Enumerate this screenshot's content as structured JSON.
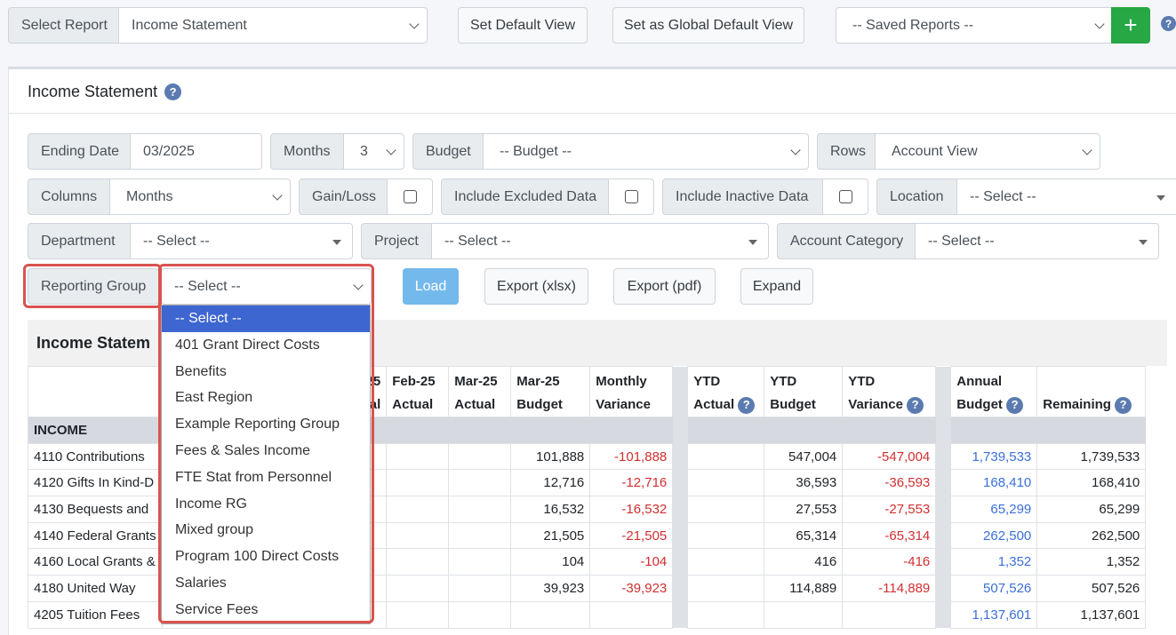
{
  "topbar": {
    "select_report_label": "Select Report",
    "report_value": "Income Statement",
    "set_default_label": "Set Default View",
    "set_global_label": "Set as Global Default View",
    "saved_reports_value": "-- Saved Reports --",
    "add_label": "+",
    "help": "?"
  },
  "card": {
    "title": "Income Statement",
    "help": "?"
  },
  "filters": {
    "ending_date_label": "Ending Date",
    "ending_date_value": "03/2025",
    "months_label": "Months",
    "months_value": "3",
    "budget_label": "Budget",
    "budget_value": "-- Budget --",
    "rows_label": "Rows",
    "rows_value": "Account View",
    "columns_label": "Columns",
    "columns_value": "Months",
    "gainloss_label": "Gain/Loss",
    "excluded_label": "Include Excluded Data",
    "inactive_label": "Include Inactive Data",
    "location_label": "Location",
    "location_value": "-- Select --",
    "department_label": "Department",
    "department_value": "-- Select --",
    "project_label": "Project",
    "project_value": "-- Select --",
    "account_category_label": "Account Category",
    "account_category_value": "-- Select --",
    "reporting_group_label": "Reporting Group",
    "reporting_group_value": "-- Select --"
  },
  "actions": {
    "load": "Load",
    "export_xlsx": "Export (xlsx)",
    "export_pdf": "Export (pdf)",
    "expand": "Expand"
  },
  "dropdown": {
    "options": [
      "-- Select --",
      "401 Grant Direct Costs",
      "Benefits",
      "East Region",
      "Example Reporting Group",
      "Fees & Sales Income",
      "FTE Stat from Personnel",
      "Income RG",
      "Mixed group",
      "Program 100 Direct Costs",
      "Salaries",
      "Service Fees"
    ]
  },
  "table": {
    "section_title": "Income Statem",
    "headers": {
      "jan": [
        "-25",
        "ual"
      ],
      "feb": [
        "Feb-25",
        "Actual"
      ],
      "mar_actual": [
        "Mar-25",
        "Actual"
      ],
      "mar_budget": [
        "Mar-25",
        "Budget"
      ],
      "monthly_var": [
        "Monthly",
        "Variance"
      ],
      "ytd_actual": [
        "YTD",
        "Actual"
      ],
      "ytd_budget": [
        "YTD",
        "Budget"
      ],
      "ytd_var": [
        "YTD",
        "Variance"
      ],
      "annual_budget": [
        "Annual",
        "Budget"
      ],
      "remaining": [
        "",
        "Remaining"
      ]
    },
    "group_label": "INCOME",
    "rows": [
      {
        "account": "4110 Contributions",
        "mar_budget": "101,888",
        "monthly_var": "-101,888",
        "ytd_budget": "547,004",
        "ytd_var": "-547,004",
        "annual": "1,739,533",
        "remaining": "1,739,533"
      },
      {
        "account": "4120 Gifts In Kind-D",
        "mar_budget": "12,716",
        "monthly_var": "-12,716",
        "ytd_budget": "36,593",
        "ytd_var": "-36,593",
        "annual": "168,410",
        "remaining": "168,410"
      },
      {
        "account": "4130 Bequests and",
        "mar_budget": "16,532",
        "monthly_var": "-16,532",
        "ytd_budget": "27,553",
        "ytd_var": "-27,553",
        "annual": "65,299",
        "remaining": "65,299"
      },
      {
        "account": "4140 Federal Grants",
        "mar_budget": "21,505",
        "monthly_var": "-21,505",
        "ytd_budget": "65,314",
        "ytd_var": "-65,314",
        "annual": "262,500",
        "remaining": "262,500"
      },
      {
        "account": "4160 Local Grants &",
        "mar_budget": "104",
        "monthly_var": "-104",
        "ytd_budget": "416",
        "ytd_var": "-416",
        "annual": "1,352",
        "remaining": "1,352"
      },
      {
        "account": "4180 United Way",
        "mar_budget": "39,923",
        "monthly_var": "-39,923",
        "ytd_budget": "114,889",
        "ytd_var": "-114,889",
        "annual": "507,526",
        "remaining": "507,526"
      },
      {
        "account": "4205 Tuition Fees",
        "mar_budget": "",
        "monthly_var": "",
        "ytd_budget": "",
        "ytd_var": "",
        "annual": "1,137,601",
        "remaining": "1,137,601"
      }
    ]
  }
}
